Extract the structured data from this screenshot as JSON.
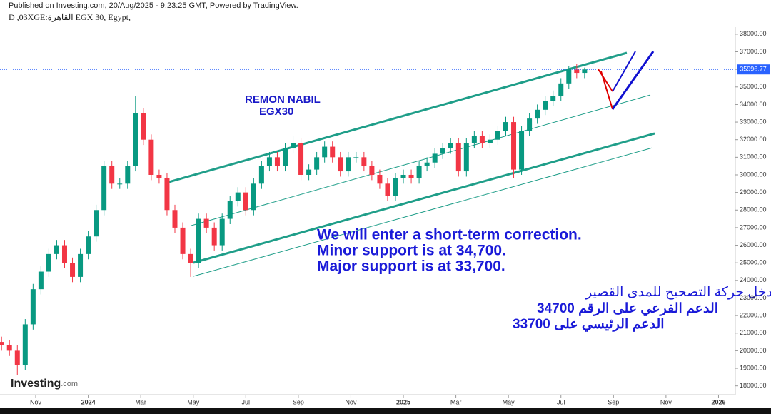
{
  "chart_data": {
    "type": "candlestick",
    "header": "Published on Investing.com, 20/Aug/2025 - 9:23:25 GMT, Powered by TradingView.",
    "subheader": "D ,03XGE:ةرهاقلا EGX 30, Egypt,",
    "author": "REMON NABIL",
    "symbol": "EGX30",
    "annotation_en": [
      "We will enter a short-term correction.",
      "Minor support is at 34,700.",
      "Major support is at 33,700."
    ],
    "annotation_ar": [
      "سوف ندخل حركة التصحيح للمدى القصير",
      "الدعم الفرعي على الرقم 34700",
      "الدعم الرئيسي على 33700"
    ],
    "logo": "Investing",
    "logo_suffix": ".com",
    "last_price": 35996.77,
    "colors": {
      "up": "#089981",
      "down": "#f23645",
      "price_tag": "#2962ff"
    },
    "xlim": [
      -3.36,
      24.64
    ],
    "xticks": [
      {
        "value": -2,
        "label": "Nov"
      },
      {
        "value": 0,
        "label": "2024"
      },
      {
        "value": 2,
        "label": "Mar"
      },
      {
        "value": 4,
        "label": "May"
      },
      {
        "value": 6,
        "label": "Jul"
      },
      {
        "value": 8,
        "label": "Sep"
      },
      {
        "value": 10,
        "label": "Nov"
      },
      {
        "value": 12,
        "label": "2025"
      },
      {
        "value": 14,
        "label": "Mar"
      },
      {
        "value": 16,
        "label": "May"
      },
      {
        "value": 18,
        "label": "Jul"
      },
      {
        "value": 20,
        "label": "Sep"
      },
      {
        "value": 22,
        "label": "Nov"
      },
      {
        "value": 24,
        "label": "2026"
      }
    ],
    "ylim": [
      17500,
      38400
    ],
    "yticks": [
      {
        "value": 18000,
        "label": "18000.00"
      },
      {
        "value": 19000,
        "label": "19000.00"
      },
      {
        "value": 20000,
        "label": "20000.00"
      },
      {
        "value": 21000,
        "label": "21000.00"
      },
      {
        "value": 22000,
        "label": "22000.00"
      },
      {
        "value": 23000,
        "label": "23000.00"
      },
      {
        "value": 24000,
        "label": "24000.00"
      },
      {
        "value": 25000,
        "label": "25000.00"
      },
      {
        "value": 26000,
        "label": "26000.00"
      },
      {
        "value": 27000,
        "label": "27000.00"
      },
      {
        "value": 28000,
        "label": "28000.00"
      },
      {
        "value": 29000,
        "label": "29000.00"
      },
      {
        "value": 30000,
        "label": "30000.00"
      },
      {
        "value": 31000,
        "label": "31000.00"
      },
      {
        "value": 32000,
        "label": "32000.00"
      },
      {
        "value": 33000,
        "label": "33000.00"
      },
      {
        "value": 34000,
        "label": "34000.00"
      },
      {
        "value": 35000,
        "label": "35000.00"
      },
      {
        "value": 36000,
        "label": "36000.00"
      },
      {
        "value": 37000,
        "label": "37000.00"
      },
      {
        "value": 38000,
        "label": "38000.00"
      }
    ],
    "x": [
      -3.3,
      -3.0,
      -2.7,
      -2.4,
      -2.1,
      -1.8,
      -1.5,
      -1.2,
      -0.9,
      -0.6,
      -0.3,
      0.0,
      0.3,
      0.6,
      0.9,
      1.2,
      1.5,
      1.8,
      2.1,
      2.4,
      2.7,
      3.0,
      3.3,
      3.6,
      3.9,
      4.2,
      4.5,
      4.8,
      5.1,
      5.4,
      5.7,
      6.0,
      6.3,
      6.6,
      6.9,
      7.2,
      7.5,
      7.8,
      8.1,
      8.4,
      8.7,
      9.0,
      9.3,
      9.6,
      9.9,
      10.2,
      10.5,
      10.8,
      11.1,
      11.4,
      11.7,
      12.0,
      12.3,
      12.6,
      12.9,
      13.2,
      13.5,
      13.8,
      14.1,
      14.4,
      14.7,
      15.0,
      15.3,
      15.6,
      15.9,
      16.2,
      16.5,
      16.8,
      17.1,
      17.4,
      17.7,
      18.0,
      18.3,
      18.6,
      18.9
    ],
    "open": [
      20500,
      20300,
      20000,
      19200,
      21500,
      23500,
      24500,
      25500,
      26000,
      25000,
      24200,
      25500,
      26500,
      28000,
      30500,
      29500,
      29500,
      30500,
      33500,
      32000,
      30000,
      29800,
      28000,
      27000,
      25500,
      25000,
      27500,
      27000,
      26000,
      27500,
      28500,
      29000,
      28000,
      29500,
      30500,
      31000,
      30500,
      31500,
      31800,
      30000,
      30300,
      31000,
      31600,
      31000,
      30200,
      31000,
      31000,
      30500,
      30000,
      29500,
      28800,
      29800,
      30000,
      29800,
      30500,
      30700,
      31200,
      31500,
      31800,
      30200,
      31800,
      32200,
      31800,
      32000,
      32500,
      33000,
      30300,
      32500,
      33200,
      33700,
      34200,
      34500,
      35200,
      36000,
      35800
    ],
    "high": [
      20800,
      20600,
      20300,
      21800,
      23800,
      24800,
      25800,
      26300,
      26300,
      25300,
      25800,
      26800,
      28300,
      30800,
      30800,
      29800,
      30800,
      34500,
      33800,
      32300,
      30300,
      30100,
      28300,
      27300,
      25800,
      27800,
      27800,
      27300,
      27800,
      28800,
      29300,
      29300,
      29800,
      30800,
      31300,
      31300,
      31800,
      32200,
      32100,
      30600,
      31300,
      31900,
      31900,
      31300,
      31300,
      31300,
      31300,
      30800,
      30300,
      29800,
      30100,
      30300,
      30300,
      30800,
      31000,
      31500,
      31800,
      32100,
      32100,
      32100,
      32500,
      32500,
      32300,
      32800,
      33300,
      33300,
      32800,
      33500,
      34000,
      34500,
      34800,
      35500,
      36200,
      36300,
      36100
    ],
    "low": [
      20000,
      19700,
      18600,
      18900,
      21200,
      23200,
      24200,
      25200,
      24700,
      23900,
      23900,
      25200,
      26200,
      27700,
      29200,
      29200,
      29200,
      30200,
      31700,
      29700,
      29500,
      27700,
      26700,
      25200,
      24200,
      24700,
      26700,
      25700,
      25700,
      27200,
      28200,
      27700,
      27700,
      29200,
      30200,
      30200,
      30200,
      31200,
      29700,
      29700,
      30000,
      30700,
      30700,
      29900,
      29900,
      30700,
      30200,
      29700,
      29200,
      28500,
      28500,
      29500,
      29500,
      29500,
      30200,
      30400,
      30900,
      31200,
      29900,
      29900,
      31500,
      31500,
      31500,
      31700,
      32200,
      29800,
      30000,
      32200,
      32900,
      33400,
      33900,
      34200,
      34900,
      35500,
      35500
    ],
    "close": [
      20300,
      20000,
      19200,
      21500,
      23500,
      24500,
      25500,
      26000,
      25000,
      24200,
      25500,
      26500,
      28000,
      30500,
      29500,
      29500,
      30500,
      33500,
      32000,
      30000,
      29800,
      28000,
      27000,
      25500,
      25000,
      27500,
      27000,
      26000,
      27500,
      28500,
      29000,
      28000,
      29500,
      30500,
      31000,
      30500,
      31500,
      31800,
      30000,
      30300,
      31000,
      31600,
      31000,
      30200,
      31000,
      31000,
      30500,
      30000,
      29500,
      28800,
      29800,
      30000,
      29800,
      30500,
      30700,
      31200,
      31500,
      31800,
      30200,
      31800,
      32200,
      31800,
      32000,
      32500,
      33000,
      30300,
      32500,
      33200,
      33700,
      34200,
      34500,
      35200,
      36000,
      35800,
      35996.77
    ]
  }
}
